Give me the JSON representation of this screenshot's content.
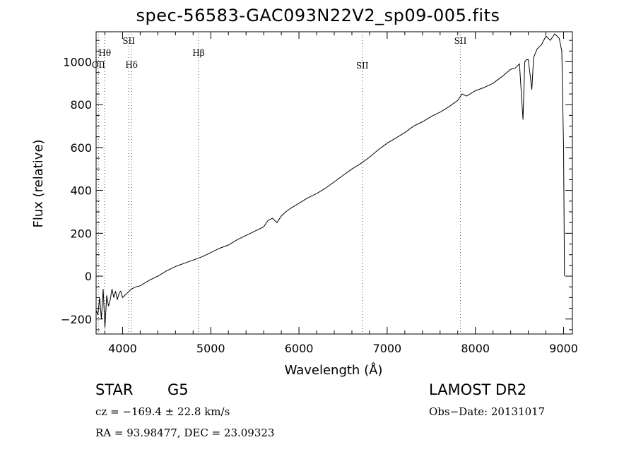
{
  "chart_data": {
    "type": "line",
    "title": "spec-56583-GAC093N22V2_sp09-005.fits",
    "xlabel": "Wavelength (Å)",
    "ylabel": "Flux (relative)",
    "xlim": [
      3700,
      9100
    ],
    "ylim": [
      -270,
      1140
    ],
    "xticks": [
      4000,
      5000,
      6000,
      7000,
      8000,
      9000
    ],
    "yticks": [
      -200,
      0,
      200,
      400,
      600,
      800,
      1000
    ],
    "grid": false,
    "series": [
      {
        "x": [
          3700,
          3720,
          3740,
          3760,
          3780,
          3800,
          3820,
          3840,
          3860,
          3880,
          3900,
          3920,
          3940,
          3960,
          3980,
          4000,
          4050,
          4100,
          4150,
          4200,
          4300,
          4400,
          4500,
          4600,
          4700,
          4800,
          4900,
          5000,
          5100,
          5200,
          5300,
          5400,
          5500,
          5600,
          5650,
          5700,
          5750,
          5800,
          5850,
          5900,
          6000,
          6100,
          6200,
          6300,
          6400,
          6500,
          6600,
          6700,
          6800,
          6900,
          7000,
          7100,
          7200,
          7300,
          7400,
          7500,
          7600,
          7700,
          7800,
          7850,
          7900,
          8000,
          8100,
          8200,
          8300,
          8400,
          8450,
          8500,
          8520,
          8540,
          8560,
          8580,
          8600,
          8640,
          8660,
          8680,
          8700,
          8750,
          8800,
          8850,
          8900,
          8950,
          8980,
          9000,
          9010
        ],
        "values": [
          -160,
          -180,
          -100,
          -200,
          -60,
          -240,
          -90,
          -140,
          -110,
          -60,
          -100,
          -70,
          -110,
          -80,
          -70,
          -100,
          -80,
          -60,
          -50,
          -45,
          -20,
          0,
          25,
          45,
          60,
          75,
          90,
          110,
          130,
          145,
          170,
          190,
          210,
          230,
          260,
          270,
          250,
          280,
          300,
          315,
          340,
          365,
          385,
          410,
          440,
          470,
          500,
          525,
          555,
          590,
          620,
          645,
          670,
          700,
          720,
          745,
          765,
          790,
          820,
          850,
          840,
          865,
          880,
          900,
          930,
          965,
          970,
          990,
          860,
          730,
          1000,
          1010,
          1010,
          870,
          1020,
          1040,
          1060,
          1080,
          1120,
          1100,
          1130,
          1110,
          1050,
          600,
          0
        ]
      }
    ],
    "line_markers": [
      {
        "name": "Hθ",
        "x": 3798
      },
      {
        "name": "OII",
        "x": 3727
      },
      {
        "name": "SII",
        "x": 4070
      },
      {
        "name": "Hδ",
        "x": 4102
      },
      {
        "name": "Hβ",
        "x": 4861
      },
      {
        "name": "SII",
        "x": 6718
      },
      {
        "name": "SII",
        "x": 7830
      }
    ]
  },
  "info": {
    "class_label": "STAR",
    "subclass_label": "G5",
    "survey": "LAMOST DR2",
    "cz": "cz = −169.4 ± 22.8 km/s",
    "obs_date": "Obs−Date: 20131017",
    "coords": "RA =  93.98477, DEC =  23.09323"
  },
  "colors": {
    "line": "#000000",
    "marker": "#555555"
  }
}
